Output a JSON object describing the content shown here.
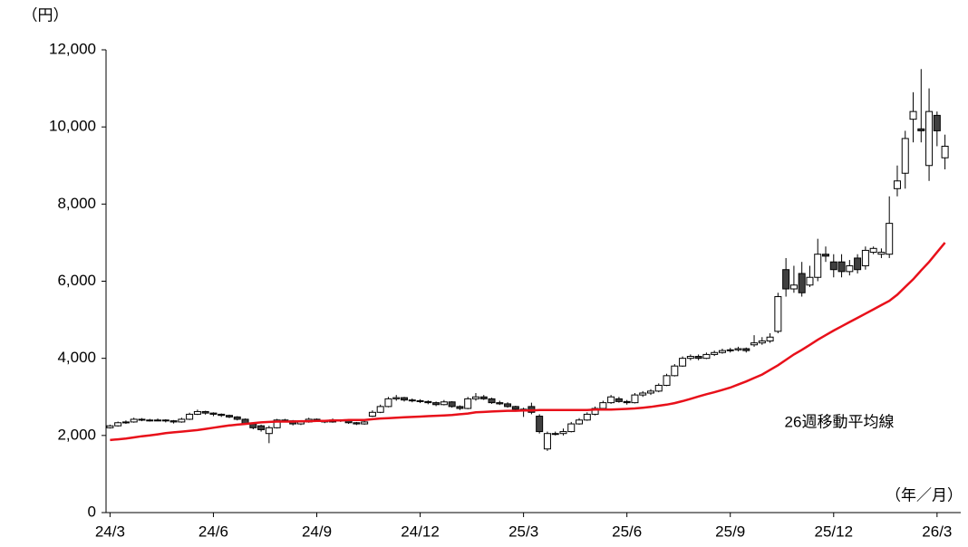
{
  "chart_data": {
    "type": "candlestick",
    "y_unit": "（円）",
    "x_unit": "（年／月）",
    "categories": [
      "24/3",
      null,
      null,
      null,
      null,
      null,
      null,
      null,
      null,
      null,
      null,
      null,
      null,
      "24/6",
      null,
      null,
      null,
      null,
      null,
      null,
      null,
      null,
      null,
      null,
      null,
      null,
      "24/9",
      null,
      null,
      null,
      null,
      null,
      null,
      null,
      null,
      null,
      null,
      null,
      null,
      "24/12",
      null,
      null,
      null,
      null,
      null,
      null,
      null,
      null,
      null,
      null,
      null,
      null,
      "25/3",
      null,
      null,
      null,
      null,
      null,
      null,
      null,
      null,
      null,
      null,
      null,
      null,
      "25/6",
      null,
      null,
      null,
      null,
      null,
      null,
      null,
      null,
      null,
      null,
      null,
      null,
      "25/9",
      null,
      null,
      null,
      null,
      null,
      null,
      null,
      null,
      null,
      null,
      null,
      null,
      "25/12",
      null,
      null,
      null,
      null,
      null,
      null,
      null,
      null,
      null,
      null,
      null,
      null,
      "26/3",
      null
    ],
    "open": [
      2200,
      2250,
      2330,
      2350,
      2420,
      2400,
      2390,
      2400,
      2380,
      2350,
      2420,
      2550,
      2620,
      2580,
      2550,
      2520,
      2480,
      2420,
      2300,
      2250,
      2050,
      2200,
      2400,
      2380,
      2300,
      2350,
      2420,
      2380,
      2350,
      2400,
      2380,
      2330,
      2300,
      2500,
      2600,
      2750,
      2950,
      2980,
      2920,
      2900,
      2880,
      2850,
      2800,
      2870,
      2750,
      2700,
      2950,
      3000,
      2950,
      2850,
      2820,
      2750,
      2680,
      2750,
      2500,
      1650,
      2050,
      2050,
      2100,
      2300,
      2400,
      2550,
      2700,
      2850,
      2950,
      2880,
      2850,
      3050,
      3100,
      3150,
      3300,
      3550,
      3800,
      4000,
      4050,
      4000,
      4100,
      4150,
      4200,
      4220,
      4250,
      4350,
      4400,
      4450,
      4700,
      6300,
      5800,
      6200,
      5900,
      6100,
      6700,
      6500,
      6500,
      6250,
      6600,
      6400,
      6750,
      6700,
      6700,
      8400,
      8800,
      10200,
      9950,
      9000,
      10300,
      9200
    ],
    "high": [
      2280,
      2360,
      2390,
      2460,
      2450,
      2430,
      2440,
      2420,
      2400,
      2460,
      2590,
      2670,
      2640,
      2600,
      2570,
      2540,
      2500,
      2440,
      2330,
      2280,
      2250,
      2430,
      2430,
      2400,
      2380,
      2460,
      2440,
      2400,
      2440,
      2420,
      2400,
      2350,
      2380,
      2650,
      2800,
      3000,
      3050,
      3000,
      2960,
      2940,
      2910,
      2880,
      2920,
      2890,
      2780,
      3000,
      3100,
      3050,
      2980,
      2900,
      2860,
      2770,
      2720,
      2850,
      2550,
      2100,
      2100,
      2180,
      2350,
      2450,
      2600,
      2750,
      2900,
      3050,
      3000,
      2920,
      3100,
      3150,
      3200,
      3350,
      3600,
      3850,
      4050,
      4100,
      4100,
      4150,
      4200,
      4250,
      4270,
      4300,
      4280,
      4600,
      4550,
      4650,
      5700,
      6600,
      6400,
      6500,
      6400,
      7100,
      6900,
      6700,
      6700,
      6550,
      6700,
      6900,
      6900,
      6850,
      8200,
      9000,
      9900,
      10900,
      11500,
      11000,
      10400,
      9800
    ],
    "low": [
      2180,
      2230,
      2300,
      2330,
      2370,
      2360,
      2370,
      2340,
      2310,
      2330,
      2400,
      2530,
      2540,
      2500,
      2480,
      2450,
      2390,
      2280,
      2160,
      2100,
      1800,
      2180,
      2340,
      2260,
      2270,
      2330,
      2350,
      2320,
      2330,
      2350,
      2300,
      2270,
      2280,
      2480,
      2580,
      2730,
      2900,
      2880,
      2860,
      2840,
      2810,
      2760,
      2780,
      2720,
      2660,
      2680,
      2900,
      2920,
      2820,
      2790,
      2720,
      2640,
      2480,
      2550,
      2050,
      1600,
      2000,
      2000,
      2080,
      2280,
      2380,
      2520,
      2680,
      2820,
      2850,
      2800,
      2830,
      3000,
      3050,
      3120,
      3280,
      3530,
      3780,
      3950,
      3950,
      3980,
      4060,
      4120,
      4150,
      4180,
      4150,
      4300,
      4350,
      4400,
      4650,
      5600,
      5700,
      5600,
      5850,
      6000,
      6500,
      6100,
      6100,
      6150,
      6200,
      6300,
      6700,
      6600,
      6600,
      8200,
      8400,
      9600,
      9600,
      8600,
      9500,
      8900
    ],
    "close": [
      2250,
      2330,
      2350,
      2420,
      2400,
      2390,
      2400,
      2380,
      2350,
      2420,
      2550,
      2620,
      2580,
      2550,
      2520,
      2480,
      2420,
      2300,
      2200,
      2150,
      2200,
      2400,
      2380,
      2300,
      2350,
      2420,
      2380,
      2350,
      2400,
      2380,
      2330,
      2300,
      2350,
      2600,
      2750,
      2950,
      2980,
      2920,
      2900,
      2880,
      2850,
      2800,
      2870,
      2750,
      2700,
      2950,
      3000,
      2950,
      2850,
      2820,
      2750,
      2680,
      2650,
      2600,
      2100,
      2050,
      2050,
      2100,
      2300,
      2400,
      2550,
      2700,
      2850,
      3000,
      2880,
      2850,
      3050,
      3100,
      3150,
      3300,
      3550,
      3800,
      4000,
      4050,
      4000,
      4100,
      4150,
      4200,
      4220,
      4250,
      4200,
      4400,
      4450,
      4550,
      5600,
      5800,
      5900,
      5700,
      6100,
      6700,
      6650,
      6300,
      6250,
      6400,
      6300,
      6800,
      6850,
      6750,
      7500,
      8600,
      9700,
      10400,
      9900,
      10400,
      9900,
      9500
    ],
    "up_color": "#ffffff",
    "down_color": "#404040",
    "moving_average": {
      "name": "26週移動平均線",
      "color": "#e8101a",
      "values": [
        1880,
        1900,
        1920,
        1950,
        1980,
        2000,
        2030,
        2060,
        2080,
        2100,
        2120,
        2140,
        2170,
        2200,
        2230,
        2260,
        2280,
        2300,
        2320,
        2340,
        2350,
        2360,
        2360,
        2360,
        2370,
        2370,
        2380,
        2380,
        2390,
        2390,
        2400,
        2400,
        2400,
        2420,
        2440,
        2450,
        2460,
        2470,
        2480,
        2490,
        2500,
        2510,
        2520,
        2530,
        2550,
        2570,
        2600,
        2610,
        2620,
        2630,
        2640,
        2640,
        2650,
        2650,
        2660,
        2660,
        2660,
        2660,
        2660,
        2660,
        2660,
        2670,
        2670,
        2670,
        2680,
        2690,
        2700,
        2720,
        2740,
        2770,
        2800,
        2840,
        2890,
        2950,
        3010,
        3070,
        3120,
        3180,
        3240,
        3320,
        3400,
        3490,
        3580,
        3700,
        3820,
        3960,
        4100,
        4220,
        4350,
        4480,
        4600,
        4720,
        4830,
        4940,
        5050,
        5160,
        5270,
        5380,
        5490,
        5650,
        5850,
        6050,
        6280,
        6500,
        6750,
        7000
      ]
    },
    "ylim": [
      0,
      12000
    ],
    "yticks": [
      0,
      {
        "value": 2000,
        "label": "2,000"
      },
      {
        "value": 4000,
        "label": "4,000"
      },
      {
        "value": 6000,
        "label": "6,000"
      },
      {
        "value": 8000,
        "label": "8,000"
      },
      {
        "value": 10000,
        "label": "10,000"
      },
      {
        "value": 12000,
        "label": "12,000"
      }
    ]
  }
}
